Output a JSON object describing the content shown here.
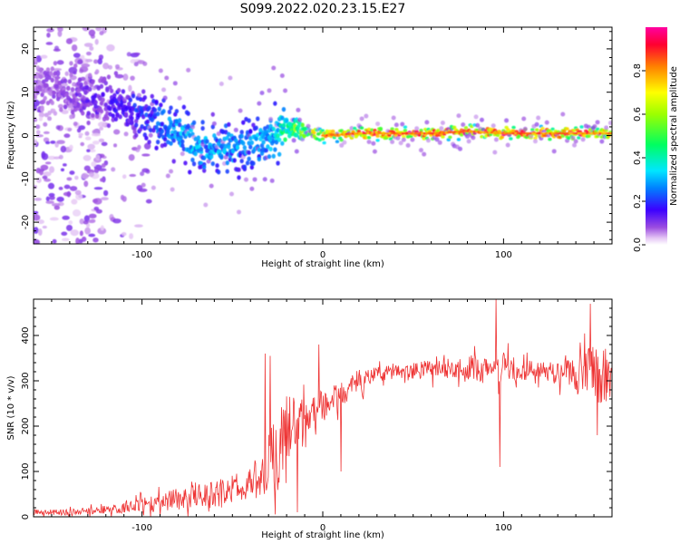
{
  "figure": {
    "title": "S099.2022.020.23.15.E27"
  },
  "colorbar": {
    "label": "Normalized spectral amplitude",
    "ticks": [
      0.0,
      0.2,
      0.4,
      0.6,
      0.8
    ],
    "tick_labels": [
      "0.0",
      "0.2",
      "0.4",
      "0.6",
      "0.8"
    ],
    "stops": [
      {
        "v": 0.0,
        "c": "#ffffff"
      },
      {
        "v": 0.03,
        "c": "#e6c8f5"
      },
      {
        "v": 0.08,
        "c": "#9b4de0"
      },
      {
        "v": 0.16,
        "c": "#3c00ff"
      },
      {
        "v": 0.26,
        "c": "#0080ff"
      },
      {
        "v": 0.34,
        "c": "#00e6ff"
      },
      {
        "v": 0.46,
        "c": "#00ff60"
      },
      {
        "v": 0.6,
        "c": "#9cff00"
      },
      {
        "v": 0.7,
        "c": "#ffff00"
      },
      {
        "v": 0.82,
        "c": "#ff8000"
      },
      {
        "v": 0.92,
        "c": "#ff0030"
      },
      {
        "v": 1.0,
        "c": "#ff00a0"
      }
    ]
  },
  "chart_data": [
    {
      "type": "heatmap",
      "title": "",
      "xlabel": "Height of straight line (km)",
      "ylabel": "Frequency (Hz)",
      "xlim": [
        -160,
        160
      ],
      "ylim": [
        -25,
        25
      ],
      "xticks": [
        -100,
        0,
        100
      ],
      "xtick_labels": [
        "-100",
        "0",
        "100"
      ],
      "yticks": [
        -20,
        -10,
        0,
        10,
        20
      ],
      "ytick_labels": [
        "-20",
        "-10",
        "0",
        "10",
        "20"
      ],
      "ridge": {
        "x": [
          -160,
          -140,
          -120,
          -110,
          -100,
          -90,
          -80,
          -70,
          -60,
          -50,
          -40,
          -30,
          -20,
          -10,
          0,
          20,
          40,
          60,
          80,
          100,
          120,
          140,
          160
        ],
        "y": [
          12,
          10,
          8,
          7,
          5,
          3,
          1,
          -2,
          -3,
          -3,
          -2,
          -1,
          2,
          1,
          0,
          0.5,
          0.5,
          0.5,
          1,
          0.5,
          0.5,
          0.5,
          0.5
        ],
        "amplitude": [
          0.08,
          0.1,
          0.14,
          0.17,
          0.2,
          0.25,
          0.3,
          0.32,
          0.3,
          0.28,
          0.28,
          0.3,
          0.45,
          0.6,
          0.75,
          0.85,
          0.88,
          0.88,
          0.85,
          0.88,
          0.9,
          0.88,
          0.7
        ]
      },
      "background_noise": {
        "x_range": [
          -160,
          -120
        ],
        "y_range": [
          -25,
          25
        ],
        "amplitude": 0.08
      }
    },
    {
      "type": "line",
      "title": "",
      "xlabel": "Height of straight line (km)",
      "ylabel": "SNR (10 * v/v)",
      "xlim": [
        -160,
        160
      ],
      "ylim": [
        0,
        480
      ],
      "xticks": [
        -100,
        0,
        100
      ],
      "xtick_labels": [
        "-100",
        "0",
        "100"
      ],
      "yticks": [
        0,
        100,
        200,
        300,
        400
      ],
      "ytick_labels": [
        "0",
        "100",
        "200",
        "300",
        "400"
      ],
      "color": "#ee3333",
      "series": [
        {
          "name": "",
          "envelope": {
            "x": [
              -160,
              -140,
              -120,
              -100,
              -80,
              -60,
              -40,
              -30,
              -25,
              -20,
              -10,
              0,
              10,
              20,
              30,
              40,
              60,
              80,
              90,
              100,
              110,
              120,
              130,
              140,
              150,
              160
            ],
            "mean": [
              10,
              10,
              15,
              25,
              40,
              50,
              70,
              110,
              150,
              200,
              220,
              240,
              270,
              300,
              315,
              320,
              325,
              330,
              320,
              330,
              320,
              325,
              315,
              320,
              315,
              310
            ],
            "spread": [
              8,
              8,
              10,
              20,
              30,
              35,
              45,
              90,
              110,
              90,
              50,
              45,
              40,
              30,
              20,
              20,
              25,
              30,
              35,
              45,
              30,
              25,
              30,
              60,
              80,
              70
            ]
          },
          "spikes": [
            {
              "x": -32,
              "y": 360
            },
            {
              "x": -29,
              "y": 355
            },
            {
              "x": -14,
              "y": 10
            },
            {
              "x": -2,
              "y": 380
            },
            {
              "x": 10,
              "y": 100
            },
            {
              "x": 96,
              "y": 480
            },
            {
              "x": 98,
              "y": 110
            },
            {
              "x": 148,
              "y": 470
            },
            {
              "x": 152,
              "y": 180
            }
          ]
        }
      ]
    }
  ]
}
